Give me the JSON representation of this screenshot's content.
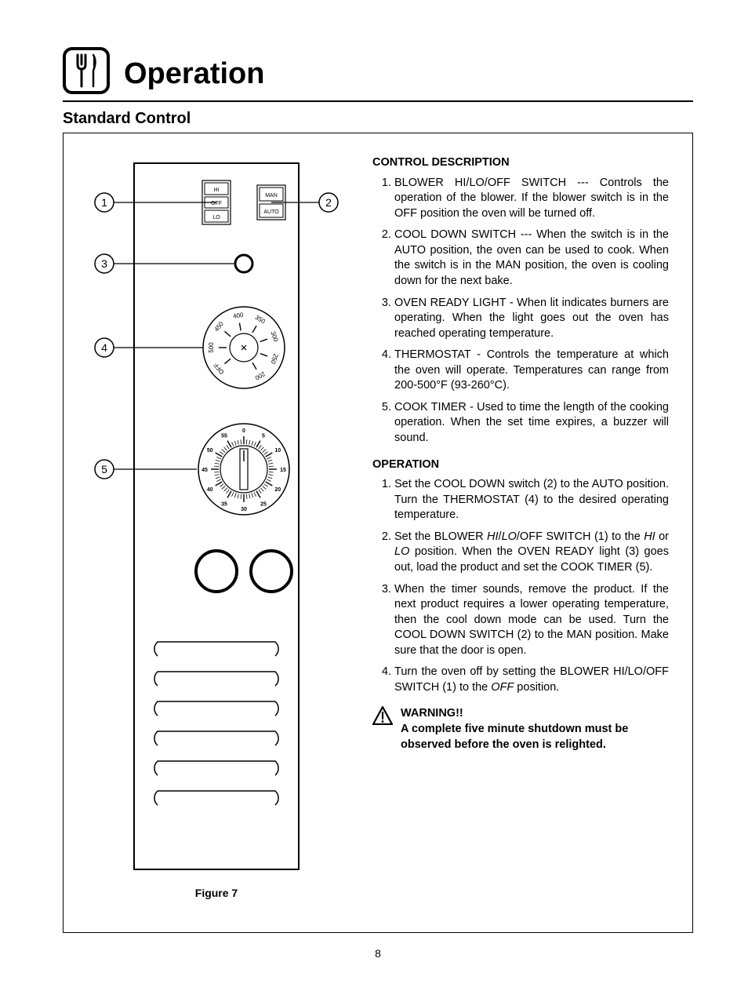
{
  "header": {
    "title": "Operation",
    "subtitle": "Standard Control"
  },
  "figure": {
    "caption": "Figure 7",
    "callouts": [
      "1",
      "2",
      "3",
      "4",
      "5"
    ],
    "blower_switch": {
      "labels": [
        "HI",
        "OFF",
        "LO"
      ]
    },
    "cooldown_switch": {
      "labels": [
        "MAN",
        "AUTO"
      ]
    },
    "thermostat": {
      "labels": [
        "OFF",
        "500",
        "450",
        "400",
        "350",
        "300",
        "250",
        "200"
      ]
    },
    "timer": {
      "labels": [
        "0",
        "5",
        "10",
        "15",
        "20",
        "25",
        "30",
        "35",
        "40",
        "45",
        "50",
        "55"
      ]
    }
  },
  "control_description": {
    "heading": "CONTROL DESCRIPTION",
    "items": [
      "BLOWER HI/LO/OFF SWITCH --- Controls the operation of the blower. If the blower switch is in the OFF position the oven will be turned off.",
      "COOL DOWN SWITCH --- When the switch is in the AUTO position, the oven can be used to cook. When the switch is in the MAN position, the oven is cooling down for the next bake.",
      "OVEN READY LIGHT - When lit indicates burners are operating. When the light goes out the oven has reached operating temperature.",
      "THERMOSTAT - Controls the temperature at which the oven will operate. Temperatures can range from 200-500_F (93-260_C).",
      "COOK TIMER - Used to time the length of the cooking operation. When the set time expires, a buzzer will sound."
    ]
  },
  "operation": {
    "heading": "OPERATION",
    "items": [
      "Set the COOL DOWN switch (2) to the AUTO position. Turn the THERMOSTAT (4) to the desired operating temperature.",
      "Set the BLOWER HI/LO/OFF SWITCH (1) to the HI or LO position. When the OVEN READY light (3) goes out, load the product and set the COOK TIMER (5).",
      "When the timer sounds, remove the product. If the next product requires a lower operating temperature, then the cool down mode can be used. Turn the COOL DOWN SWITCH (2) to the MAN position. Make sure that the door is open.",
      "Turn the oven off by setting the BLOWER HI/LO/OFF SWITCH (1) to the OFF position."
    ]
  },
  "warning": {
    "label": "WARNING!!",
    "text": "A complete five minute shutdown must be observed before the oven is relighted."
  },
  "page_number": "8"
}
